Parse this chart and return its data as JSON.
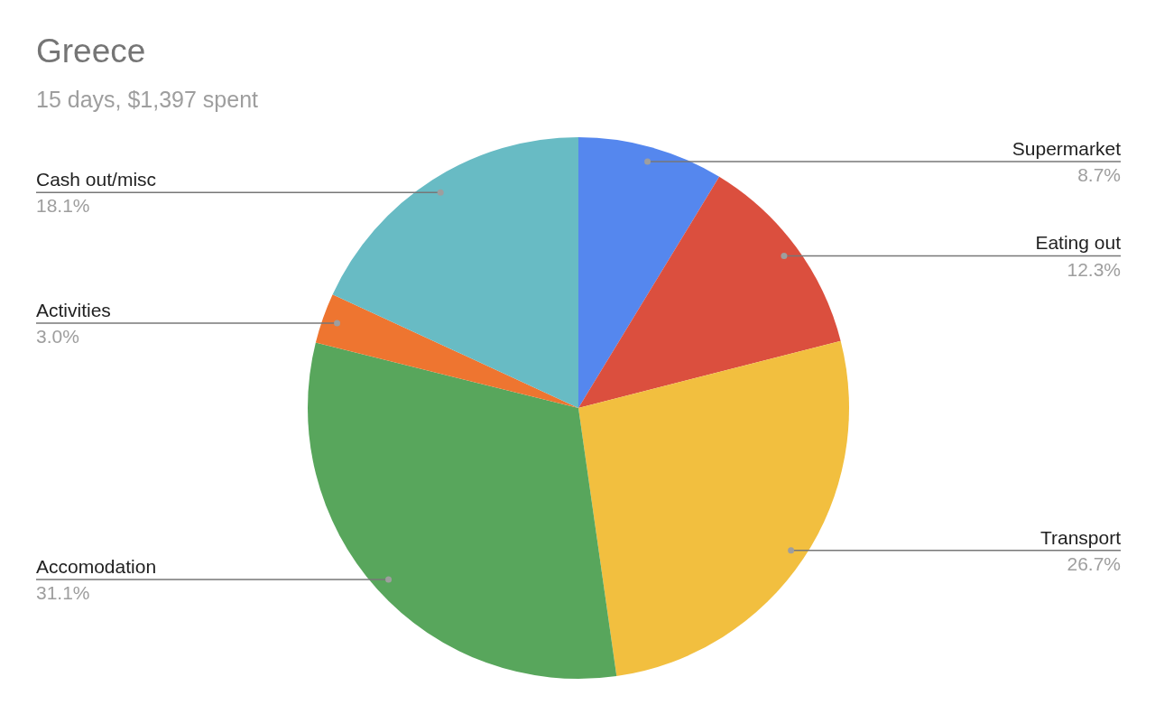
{
  "chart_data": {
    "type": "pie",
    "title": "Greece",
    "subtitle": "15 days, $1,397 spent",
    "categories": [
      "Supermarket",
      "Eating out",
      "Transport",
      "Accomodation",
      "Activities",
      "Cash out/misc"
    ],
    "values": [
      8.7,
      12.3,
      26.7,
      31.1,
      3.0,
      18.1
    ],
    "value_labels": [
      "8.7%",
      "12.3%",
      "26.7%",
      "31.1%",
      "3.0%",
      "18.1%"
    ],
    "colors": [
      "#5587ee",
      "#db4f3e",
      "#f2bf3f",
      "#58a65c",
      "#ee7530",
      "#68bbc4"
    ],
    "legend": false
  }
}
